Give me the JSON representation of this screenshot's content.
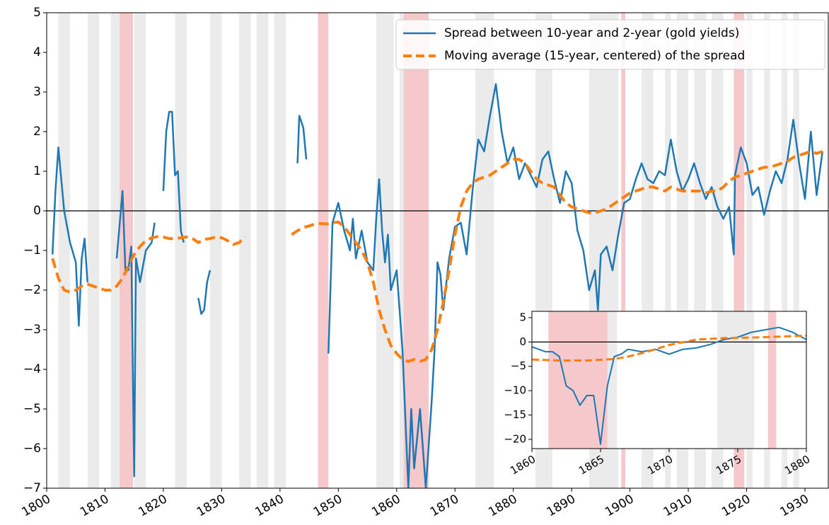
{
  "chart_data": [
    {
      "type": "line",
      "xlim": [
        1800,
        1934
      ],
      "ylim": [
        -7,
        5
      ],
      "xticks": [
        1800,
        1810,
        1820,
        1830,
        1840,
        1850,
        1860,
        1870,
        1880,
        1890,
        1900,
        1910,
        1920,
        1930
      ],
      "yticks": [
        {
          "value": -7,
          "label": "−7"
        },
        {
          "value": -6,
          "label": "−6"
        },
        {
          "value": -5,
          "label": "−5"
        },
        {
          "value": -4,
          "label": "−4"
        },
        {
          "value": -3,
          "label": "−3"
        },
        {
          "value": -2,
          "label": "−2"
        },
        {
          "value": -1,
          "label": "−1"
        },
        0,
        1,
        2,
        3,
        4,
        5
      ],
      "zero_line": true,
      "legend": "upper right",
      "shaded_regions": [
        {
          "color": "#ebebeb",
          "spans": [
            [
              1802,
              1804
            ],
            [
              1807,
              1809
            ],
            [
              1811,
              1812.5
            ],
            [
              1815,
              1817
            ],
            [
              1822,
              1824
            ],
            [
              1828,
              1830
            ],
            [
              1833,
              1835
            ],
            [
              1836,
              1838
            ],
            [
              1839,
              1841
            ],
            [
              1856.5,
              1859.5
            ],
            [
              1860.5,
              1862
            ],
            [
              1873.5,
              1876.7
            ],
            [
              1883.8,
              1886.7
            ],
            [
              1893,
              1898
            ],
            [
              1902,
              1904
            ],
            [
              1906,
              1907
            ],
            [
              1908,
              1910
            ],
            [
              1911,
              1913
            ],
            [
              1914,
              1916
            ],
            [
              1920,
              1921
            ],
            [
              1923,
              1924
            ],
            [
              1926,
              1927
            ],
            [
              1928,
              1929
            ]
          ]
        },
        {
          "color": "#f5c9cb",
          "spans": [
            [
              1812.5,
              1814.8
            ],
            [
              1846.5,
              1848.3
            ],
            [
              1861.2,
              1865.5
            ],
            [
              1898.5,
              1899.2
            ],
            [
              1917.8,
              1919.6
            ]
          ]
        }
      ],
      "series": [
        {
          "name": "Spread between 10-year and 2-year (gold yields)",
          "color": "#1f77b4",
          "style": "solid",
          "x": [
            1801,
            1801.5,
            1802,
            1802.5,
            1803,
            1804,
            1805,
            1805.5,
            1806,
            1806.5,
            1807,
            1808,
            1812,
            1813,
            1813.5,
            1814,
            1814.5,
            1815,
            1815.3,
            1816,
            1817,
            1818,
            1818.5,
            1819,
            1820,
            1820.5,
            1821,
            1821.5,
            1822,
            1822.5,
            1823,
            1823.5,
            1824,
            1826,
            1826.5,
            1827,
            1827.5,
            1828,
            1829,
            1843,
            1843.3,
            1844,
            1844.5,
            1845,
            1848.3,
            1849,
            1850,
            1851,
            1852,
            1852.5,
            1853,
            1854,
            1855,
            1856,
            1856.5,
            1857,
            1857.5,
            1858,
            1858.5,
            1859,
            1860,
            1861,
            1862,
            1862.5,
            1863,
            1864,
            1865,
            1866,
            1866.5,
            1867,
            1867.5,
            1868,
            1869,
            1870,
            1871,
            1872,
            1873,
            1874,
            1875,
            1876,
            1877,
            1878,
            1879,
            1880,
            1881,
            1882,
            1883,
            1884,
            1885,
            1886,
            1887,
            1888,
            1889,
            1890,
            1891,
            1892,
            1893,
            1894,
            1894.5,
            1895,
            1896,
            1897,
            1898,
            1899,
            1900,
            1901,
            1902,
            1903,
            1904,
            1905,
            1906,
            1907,
            1908,
            1909,
            1910,
            1911,
            1912,
            1913,
            1914,
            1915,
            1916,
            1917,
            1917.8,
            1918,
            1919,
            1920,
            1921,
            1922,
            1923,
            1924,
            1925,
            1926,
            1927,
            1928,
            1929,
            1930,
            1931,
            1932,
            1933
          ],
          "values": [
            -1.1,
            0.5,
            1.6,
            0.8,
            0,
            -0.8,
            -1.3,
            -2.9,
            -1.2,
            -0.7,
            -1.8,
            null,
            -1.2,
            0.5,
            -1.5,
            -1.5,
            -0.9,
            -6.7,
            -1.2,
            -1.8,
            -1.0,
            -0.8,
            -0.3,
            null,
            0.5,
            2.0,
            2.5,
            2.5,
            0.9,
            1.0,
            -0.5,
            -0.8,
            null,
            -2.2,
            -2.6,
            -2.5,
            -1.8,
            -1.5,
            null,
            1.2,
            2.4,
            2.1,
            1.3,
            null,
            -3.6,
            -0.3,
            0.2,
            -0.5,
            -1.0,
            -0.2,
            -1.2,
            -0.5,
            -1.3,
            -1.5,
            -0.2,
            0.8,
            -0.5,
            -1.3,
            -0.6,
            -2.0,
            -1.5,
            -3.5,
            -7,
            -5,
            -6.5,
            -5,
            -7,
            -4.8,
            -3.5,
            -1.3,
            -1.6,
            -2.5,
            -1.2,
            -0.4,
            -0.3,
            -1.1,
            0.5,
            1.8,
            1.5,
            2.4,
            3.2,
            2.0,
            1.2,
            1.6,
            0.8,
            1.2,
            0.9,
            0.6,
            1.3,
            1.5,
            0.8,
            0.2,
            1.0,
            0.7,
            -0.5,
            -1.0,
            -2.0,
            -1.5,
            -2.5,
            -1.1,
            -0.9,
            -1.5,
            -0.6,
            0.2,
            0.3,
            0.8,
            1.2,
            0.8,
            0.7,
            1.0,
            0.9,
            1.8,
            1.0,
            0.5,
            0.8,
            1.2,
            0.7,
            0.3,
            0.6,
            0.1,
            -0.2,
            0.1,
            -1.1,
            0.9,
            1.6,
            1.2,
            0.4,
            0.6,
            -0.1,
            0.5,
            1.0,
            0.7,
            1.3,
            2.3,
            1.2,
            0.3,
            2.0,
            0.4,
            1.5
          ]
        },
        {
          "name": "Moving average (15-year, centered) of the spread",
          "color": "#ff7f0e",
          "style": "dashed",
          "x": [
            1801,
            1802,
            1803,
            1804,
            1805,
            1806,
            1807,
            1808,
            1809,
            1810,
            1811,
            1812,
            1813,
            1814,
            1815,
            1816,
            1817,
            1818,
            1819,
            1820,
            1821,
            1822,
            1823,
            1824,
            1825,
            1826,
            1827,
            1828,
            1829,
            1830,
            1831,
            1832,
            1833,
            1834,
            1838,
            1842,
            1843,
            1844,
            1845,
            1846,
            1847,
            1848,
            1849,
            1850,
            1851,
            1852,
            1853,
            1854,
            1855,
            1856,
            1857,
            1858,
            1859,
            1860,
            1861,
            1862,
            1863,
            1864,
            1865,
            1866,
            1867,
            1868,
            1869,
            1870,
            1871,
            1872,
            1873,
            1874,
            1875,
            1876,
            1877,
            1878,
            1879,
            1880,
            1881,
            1882,
            1883,
            1884,
            1885,
            1886,
            1887,
            1888,
            1889,
            1890,
            1891,
            1892,
            1893,
            1894,
            1895,
            1896,
            1897,
            1898,
            1899,
            1900,
            1901,
            1902,
            1903,
            1904,
            1905,
            1906,
            1907,
            1908,
            1909,
            1910,
            1911,
            1912,
            1913,
            1914,
            1915,
            1916,
            1917,
            1918,
            1919,
            1920,
            1921,
            1922,
            1923,
            1924,
            1925,
            1926,
            1927,
            1928,
            1929,
            1930,
            1931,
            1932,
            1933
          ],
          "values": [
            -1.2,
            -1.7,
            -2.0,
            -2.05,
            -2.0,
            -1.9,
            -1.85,
            -1.9,
            -1.95,
            -2.0,
            -2.0,
            -1.9,
            -1.7,
            -1.4,
            -1.1,
            -0.9,
            -0.75,
            -0.68,
            -0.65,
            -0.66,
            -0.7,
            -0.7,
            -0.68,
            -0.66,
            -0.7,
            -0.8,
            -0.72,
            -0.7,
            -0.66,
            -0.68,
            -0.75,
            -0.85,
            -0.8,
            -0.65,
            null,
            -0.6,
            -0.5,
            -0.42,
            -0.38,
            -0.33,
            -0.32,
            -0.33,
            -0.3,
            -0.28,
            -0.4,
            -0.6,
            -0.8,
            -1.0,
            -1.3,
            -1.8,
            -2.5,
            -3.0,
            -3.4,
            -3.6,
            -3.75,
            -3.8,
            -3.75,
            -3.8,
            -3.75,
            -3.5,
            -3.0,
            -2.3,
            -1.5,
            -0.6,
            0.1,
            0.5,
            0.7,
            0.8,
            0.85,
            0.9,
            1.0,
            1.1,
            1.2,
            1.3,
            1.3,
            1.2,
            1.0,
            0.8,
            0.7,
            0.65,
            0.6,
            0.4,
            0.2,
            0.1,
            0.05,
            0.0,
            -0.05,
            -0.05,
            0,
            0.05,
            0.15,
            0.25,
            0.35,
            0.45,
            0.5,
            0.55,
            0.6,
            0.6,
            0.55,
            0.5,
            0.6,
            0.55,
            0.5,
            0.5,
            0.5,
            0.5,
            0.45,
            0.5,
            0.5,
            0.6,
            0.75,
            0.85,
            0.9,
            0.95,
            1.0,
            1.05,
            1.1,
            1.1,
            1.15,
            1.2,
            1.25,
            1.35,
            1.4,
            1.45,
            1.5,
            1.45,
            1.5
          ]
        }
      ]
    },
    {
      "type": "line",
      "xlim": [
        1860,
        1880
      ],
      "ylim": [
        -21.9,
        6.3
      ],
      "xticks": [
        1860,
        1865,
        1870,
        1875,
        1880
      ],
      "yticks": [
        {
          "value": -20,
          "label": "−20"
        },
        {
          "value": -15,
          "label": "−15"
        },
        {
          "value": -10,
          "label": "−10"
        },
        {
          "value": -5,
          "label": "−5"
        },
        0,
        5
      ],
      "zero_line": true,
      "shaded_regions": [
        {
          "color": "#ebebeb",
          "spans": [
            [
              1862.3,
              1863
            ],
            [
              1865,
              1866.2
            ],
            [
              1873.5,
              1876.2
            ]
          ]
        },
        {
          "color": "#f5c9cb",
          "spans": [
            [
              1861.2,
              1865.5
            ],
            [
              1877.2,
              1877.8
            ]
          ]
        }
      ],
      "series": [
        {
          "color": "#1f77b4",
          "style": "solid",
          "x": [
            1860,
            1860.5,
            1861,
            1861.5,
            1862,
            1862.5,
            1863,
            1863.5,
            1864,
            1864.5,
            1865,
            1865.5,
            1866,
            1866.5,
            1867,
            1868,
            1869,
            1870,
            1871,
            1872,
            1873,
            1874,
            1875,
            1876,
            1877,
            1878,
            1879,
            1880
          ],
          "values": [
            -1,
            -1.5,
            -2,
            -2,
            -3,
            -9,
            -10,
            -13,
            -11,
            -11,
            -21,
            -9,
            -3,
            -2.5,
            -1.5,
            -2,
            -1.5,
            -2.5,
            -1.5,
            -1.2,
            -0.5,
            0.5,
            1,
            2,
            2.5,
            3,
            2,
            0.5
          ]
        },
        {
          "color": "#ff7f0e",
          "style": "dashed",
          "x": [
            1860,
            1862,
            1864,
            1866,
            1867,
            1868,
            1869,
            1870,
            1872,
            1874,
            1876,
            1878,
            1880
          ],
          "values": [
            -3.6,
            -3.8,
            -3.8,
            -3.5,
            -3.0,
            -2.3,
            -1.5,
            -0.6,
            0.5,
            0.8,
            0.9,
            1.1,
            1.3
          ]
        }
      ]
    }
  ]
}
